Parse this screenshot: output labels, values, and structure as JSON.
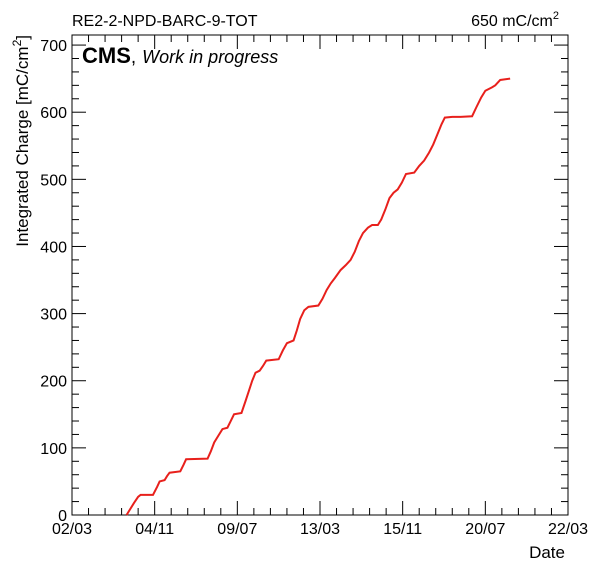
{
  "header": {
    "chamber": "RE2-2-NPD-BARC-9-TOT",
    "total_value": "650 mC/cm",
    "total_sup": "2"
  },
  "cms_label": {
    "experiment": "CMS",
    "separator": ",",
    "status": "Work in progress"
  },
  "chart_data": {
    "type": "line",
    "title": "RE2-2-NPD-BARC-9-TOT",
    "xlabel": "Date",
    "ylabel": "Integrated Charge [mC/cm",
    "ylabel_sup": "2",
    "ylabel_close": "]",
    "x_ticks": [
      "02/03",
      "04/11",
      "09/07",
      "13/03",
      "15/11",
      "20/07",
      "22/03"
    ],
    "y_ticks": [
      0,
      100,
      200,
      300,
      400,
      500,
      600,
      700
    ],
    "ylim": [
      0,
      715
    ],
    "xlim_ticks": [
      0,
      6
    ],
    "grid": false,
    "line_color": "#e8201c",
    "series": [
      {
        "points": [
          [
            0.66,
            0
          ],
          [
            0.7,
            8
          ],
          [
            0.75,
            18
          ],
          [
            0.8,
            27
          ],
          [
            0.83,
            30
          ],
          [
            0.98,
            30
          ],
          [
            1.03,
            42
          ],
          [
            1.06,
            50
          ],
          [
            1.12,
            52
          ],
          [
            1.15,
            58
          ],
          [
            1.18,
            63
          ],
          [
            1.31,
            65
          ],
          [
            1.35,
            75
          ],
          [
            1.38,
            83
          ],
          [
            1.64,
            84
          ],
          [
            1.68,
            95
          ],
          [
            1.72,
            108
          ],
          [
            1.77,
            118
          ],
          [
            1.82,
            128
          ],
          [
            1.88,
            130
          ],
          [
            1.92,
            140
          ],
          [
            1.96,
            150
          ],
          [
            2.05,
            152
          ],
          [
            2.1,
            170
          ],
          [
            2.14,
            185
          ],
          [
            2.18,
            200
          ],
          [
            2.22,
            212
          ],
          [
            2.27,
            215
          ],
          [
            2.31,
            222
          ],
          [
            2.35,
            230
          ],
          [
            2.5,
            232
          ],
          [
            2.55,
            245
          ],
          [
            2.6,
            256
          ],
          [
            2.68,
            260
          ],
          [
            2.72,
            275
          ],
          [
            2.76,
            292
          ],
          [
            2.81,
            305
          ],
          [
            2.86,
            310
          ],
          [
            2.98,
            312
          ],
          [
            3.03,
            322
          ],
          [
            3.08,
            335
          ],
          [
            3.13,
            345
          ],
          [
            3.18,
            353
          ],
          [
            3.25,
            365
          ],
          [
            3.31,
            372
          ],
          [
            3.37,
            380
          ],
          [
            3.42,
            392
          ],
          [
            3.47,
            408
          ],
          [
            3.52,
            420
          ],
          [
            3.58,
            428
          ],
          [
            3.63,
            432
          ],
          [
            3.7,
            432
          ],
          [
            3.74,
            440
          ],
          [
            3.79,
            455
          ],
          [
            3.84,
            472
          ],
          [
            3.89,
            480
          ],
          [
            3.94,
            485
          ],
          [
            3.99,
            495
          ],
          [
            4.04,
            508
          ],
          [
            4.14,
            510
          ],
          [
            4.2,
            520
          ],
          [
            4.26,
            528
          ],
          [
            4.32,
            540
          ],
          [
            4.37,
            552
          ],
          [
            4.42,
            567
          ],
          [
            4.47,
            582
          ],
          [
            4.51,
            592
          ],
          [
            4.6,
            593
          ],
          [
            4.7,
            593
          ],
          [
            4.84,
            594
          ],
          [
            4.89,
            607
          ],
          [
            4.95,
            622
          ],
          [
            5.0,
            632
          ],
          [
            5.08,
            637
          ],
          [
            5.12,
            640
          ],
          [
            5.18,
            648
          ],
          [
            5.3,
            650
          ]
        ]
      }
    ]
  }
}
